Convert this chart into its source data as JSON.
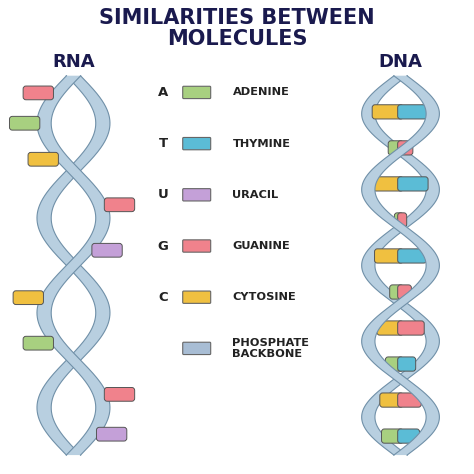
{
  "title_line1": "SIMILARITIES BETWEEN",
  "title_line2": "MOLECULES",
  "title_fontsize": 15,
  "title_color": "#1a1a4e",
  "rna_label": "RNA",
  "dna_label": "DNA",
  "label_fontsize": 13,
  "background_color": "#ffffff",
  "backbone_fill": "#b8cfe0",
  "backbone_edge": "#7090a8",
  "colors": {
    "adenine": "#a8d080",
    "thymine": "#5bbcd6",
    "uracil": "#c4a0d8",
    "guanine": "#f0828c",
    "cytosine": "#f0c040",
    "phosphate": "#a8bdd4"
  },
  "legend_items": [
    {
      "letter": "A",
      "label": "ADENINE",
      "color": "#a8d080"
    },
    {
      "letter": "T",
      "label": "THYMINE",
      "color": "#5bbcd6"
    },
    {
      "letter": "U",
      "label": "URACIL",
      "color": "#c4a0d8"
    },
    {
      "letter": "G",
      "label": "GUANINE",
      "color": "#f0828c"
    },
    {
      "letter": "C",
      "label": "CYTOSINE",
      "color": "#f0c040"
    },
    {
      "letter": "",
      "label": "PHOSPHATE\nBACKBONE",
      "color": "#a8bdd4"
    }
  ],
  "figsize": [
    4.74,
    4.74
  ],
  "dpi": 100
}
